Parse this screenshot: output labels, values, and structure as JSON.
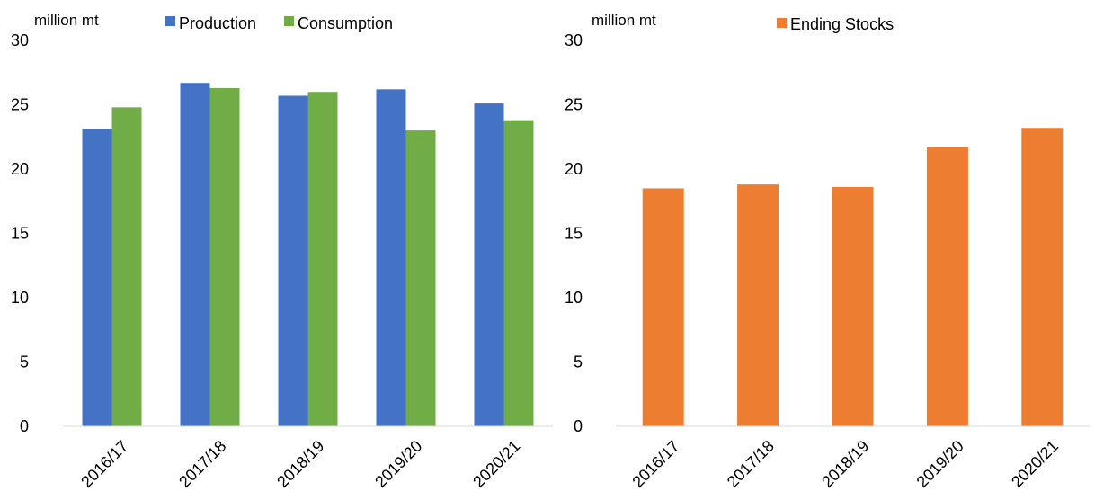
{
  "chart_data": [
    {
      "type": "bar",
      "unit_label": "million mt",
      "categories": [
        "2016/17",
        "2017/18",
        "2018/19",
        "2019/20",
        "2020/21"
      ],
      "ylim": [
        0,
        30
      ],
      "yticks": [
        "0",
        "5",
        "10",
        "15",
        "20",
        "25",
        "30"
      ],
      "grid": false,
      "legend_position": "top",
      "series": [
        {
          "name": "Production",
          "color": "#4472C4",
          "values": [
            23.1,
            26.7,
            25.7,
            26.2,
            25.1
          ]
        },
        {
          "name": "Consumption",
          "color": "#70AD47",
          "values": [
            24.8,
            26.3,
            26.0,
            23.0,
            23.8
          ]
        }
      ]
    },
    {
      "type": "bar",
      "unit_label": "million mt",
      "categories": [
        "2016/17",
        "2017/18",
        "2018/19",
        "2019/20",
        "2020/21"
      ],
      "ylim": [
        0,
        30
      ],
      "yticks": [
        "0",
        "5",
        "10",
        "15",
        "20",
        "25",
        "30"
      ],
      "grid": false,
      "legend_position": "top",
      "series": [
        {
          "name": "Ending Stocks",
          "color": "#ED7D31",
          "values": [
            18.5,
            18.8,
            18.6,
            21.7,
            23.2
          ]
        }
      ]
    }
  ]
}
